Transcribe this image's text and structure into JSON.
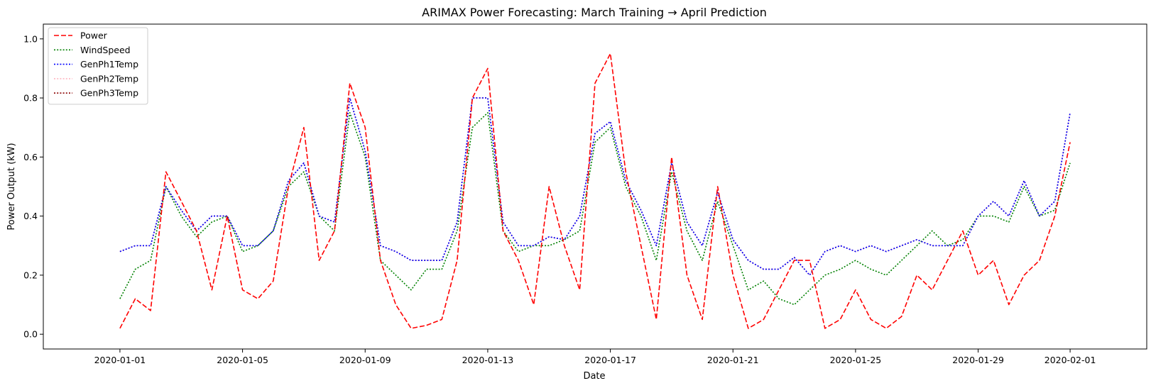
{
  "chart_data": {
    "type": "line",
    "title": "ARIMAX Power Forecasting: March Training → April Prediction",
    "xlabel": "Date",
    "ylabel": "Power Output (kW)",
    "xlim": [
      "2019-12-29T12:00",
      "2020-02-03T12:00"
    ],
    "ylim": [
      -0.05,
      1.05
    ],
    "grid": false,
    "legend_position": "top-left",
    "x_ticks": [
      "2020-01-01",
      "2020-01-05",
      "2020-01-09",
      "2020-01-13",
      "2020-01-17",
      "2020-01-21",
      "2020-01-25",
      "2020-01-29",
      "2020-02-01"
    ],
    "y_ticks": [
      "0.0",
      "0.2",
      "0.4",
      "0.6",
      "0.8",
      "1.0"
    ],
    "x": [
      "2020-01-01",
      "2020-01-01T12",
      "2020-01-02",
      "2020-01-02T12",
      "2020-01-03",
      "2020-01-03T12",
      "2020-01-04",
      "2020-01-04T12",
      "2020-01-05",
      "2020-01-05T12",
      "2020-01-06",
      "2020-01-06T12",
      "2020-01-07",
      "2020-01-07T12",
      "2020-01-08",
      "2020-01-08T12",
      "2020-01-09",
      "2020-01-09T12",
      "2020-01-10",
      "2020-01-10T12",
      "2020-01-11",
      "2020-01-11T12",
      "2020-01-12",
      "2020-01-12T12",
      "2020-01-13",
      "2020-01-13T12",
      "2020-01-14",
      "2020-01-14T12",
      "2020-01-15",
      "2020-01-15T12",
      "2020-01-16",
      "2020-01-16T12",
      "2020-01-17",
      "2020-01-17T12",
      "2020-01-18",
      "2020-01-18T12",
      "2020-01-19",
      "2020-01-19T12",
      "2020-01-20",
      "2020-01-20T12",
      "2020-01-21",
      "2020-01-21T12",
      "2020-01-22",
      "2020-01-22T12",
      "2020-01-23",
      "2020-01-23T12",
      "2020-01-24",
      "2020-01-24T12",
      "2020-01-25",
      "2020-01-25T12",
      "2020-01-26",
      "2020-01-26T12",
      "2020-01-27",
      "2020-01-27T12",
      "2020-01-28",
      "2020-01-28T12",
      "2020-01-29",
      "2020-01-29T12",
      "2020-01-30",
      "2020-01-30T12",
      "2020-01-31",
      "2020-01-31T12",
      "2020-02-01"
    ],
    "series": [
      {
        "name": "Power",
        "color": "#ff0000",
        "dash": "dashed",
        "values": [
          0.02,
          0.12,
          0.08,
          0.55,
          0.45,
          0.35,
          0.15,
          0.4,
          0.15,
          0.12,
          0.18,
          0.5,
          0.7,
          0.25,
          0.35,
          0.85,
          0.7,
          0.25,
          0.1,
          0.02,
          0.03,
          0.05,
          0.25,
          0.8,
          0.9,
          0.35,
          0.25,
          0.1,
          0.5,
          0.3,
          0.15,
          0.85,
          0.95,
          0.55,
          0.3,
          0.05,
          0.6,
          0.2,
          0.05,
          0.5,
          0.2,
          0.02,
          0.05,
          0.15,
          0.25,
          0.25,
          0.02,
          0.05,
          0.15,
          0.05,
          0.02,
          0.06,
          0.2,
          0.15,
          0.25,
          0.35,
          0.2,
          0.25,
          0.1,
          0.2,
          0.25,
          0.4,
          0.65
        ]
      },
      {
        "name": "WindSpeed",
        "color": "#008000",
        "dash": "dotted",
        "values": [
          0.12,
          0.22,
          0.25,
          0.5,
          0.4,
          0.33,
          0.38,
          0.4,
          0.28,
          0.3,
          0.35,
          0.5,
          0.55,
          0.4,
          0.35,
          0.75,
          0.6,
          0.25,
          0.2,
          0.15,
          0.22,
          0.22,
          0.35,
          0.7,
          0.75,
          0.35,
          0.28,
          0.3,
          0.3,
          0.32,
          0.35,
          0.65,
          0.7,
          0.5,
          0.4,
          0.25,
          0.55,
          0.35,
          0.25,
          0.45,
          0.3,
          0.15,
          0.18,
          0.12,
          0.1,
          0.15,
          0.2,
          0.22,
          0.25,
          0.22,
          0.2,
          0.25,
          0.3,
          0.35,
          0.3,
          0.32,
          0.4,
          0.4,
          0.38,
          0.5,
          0.4,
          0.42,
          0.58
        ]
      },
      {
        "name": "GenPh1Temp",
        "color": "#0000ff",
        "dash": "dotted",
        "values": [
          0.28,
          0.3,
          0.3,
          0.5,
          0.42,
          0.35,
          0.4,
          0.4,
          0.3,
          0.3,
          0.35,
          0.52,
          0.58,
          0.4,
          0.38,
          0.8,
          0.62,
          0.3,
          0.28,
          0.25,
          0.25,
          0.25,
          0.38,
          0.8,
          0.8,
          0.38,
          0.3,
          0.3,
          0.33,
          0.32,
          0.4,
          0.68,
          0.72,
          0.52,
          0.42,
          0.3,
          0.58,
          0.38,
          0.3,
          0.48,
          0.32,
          0.25,
          0.22,
          0.22,
          0.26,
          0.2,
          0.28,
          0.3,
          0.28,
          0.3,
          0.28,
          0.3,
          0.32,
          0.3,
          0.3,
          0.3,
          0.4,
          0.45,
          0.4,
          0.52,
          0.4,
          0.45,
          0.75
        ]
      },
      {
        "name": "GenPh2Temp",
        "color": "#ffb6c1",
        "dash": "dotted",
        "values": [
          0.28,
          0.3,
          0.3,
          0.5,
          0.42,
          0.35,
          0.4,
          0.4,
          0.3,
          0.3,
          0.35,
          0.52,
          0.58,
          0.4,
          0.38,
          0.8,
          0.62,
          0.3,
          0.28,
          0.25,
          0.25,
          0.25,
          0.38,
          0.8,
          0.8,
          0.38,
          0.3,
          0.3,
          0.33,
          0.32,
          0.4,
          0.68,
          0.72,
          0.52,
          0.42,
          0.3,
          0.58,
          0.38,
          0.3,
          0.48,
          0.32,
          0.25,
          0.22,
          0.22,
          0.26,
          0.2,
          0.28,
          0.3,
          0.28,
          0.3,
          0.28,
          0.3,
          0.32,
          0.3,
          0.3,
          0.3,
          0.4,
          0.45,
          0.4,
          0.52,
          0.4,
          0.45,
          0.75
        ]
      },
      {
        "name": "GenPh3Temp",
        "color": "#8b0000",
        "dash": "dotted",
        "values": [
          0.28,
          0.3,
          0.3,
          0.5,
          0.42,
          0.35,
          0.4,
          0.4,
          0.3,
          0.3,
          0.35,
          0.52,
          0.58,
          0.4,
          0.38,
          0.8,
          0.62,
          0.3,
          0.28,
          0.25,
          0.25,
          0.25,
          0.38,
          0.8,
          0.8,
          0.38,
          0.3,
          0.3,
          0.33,
          0.32,
          0.4,
          0.68,
          0.72,
          0.52,
          0.42,
          0.3,
          0.58,
          0.38,
          0.3,
          0.48,
          0.32,
          0.25,
          0.22,
          0.22,
          0.26,
          0.2,
          0.28,
          0.3,
          0.28,
          0.3,
          0.28,
          0.3,
          0.32,
          0.3,
          0.3,
          0.3,
          0.4,
          0.45,
          0.4,
          0.52,
          0.4,
          0.45,
          0.75
        ]
      }
    ]
  }
}
